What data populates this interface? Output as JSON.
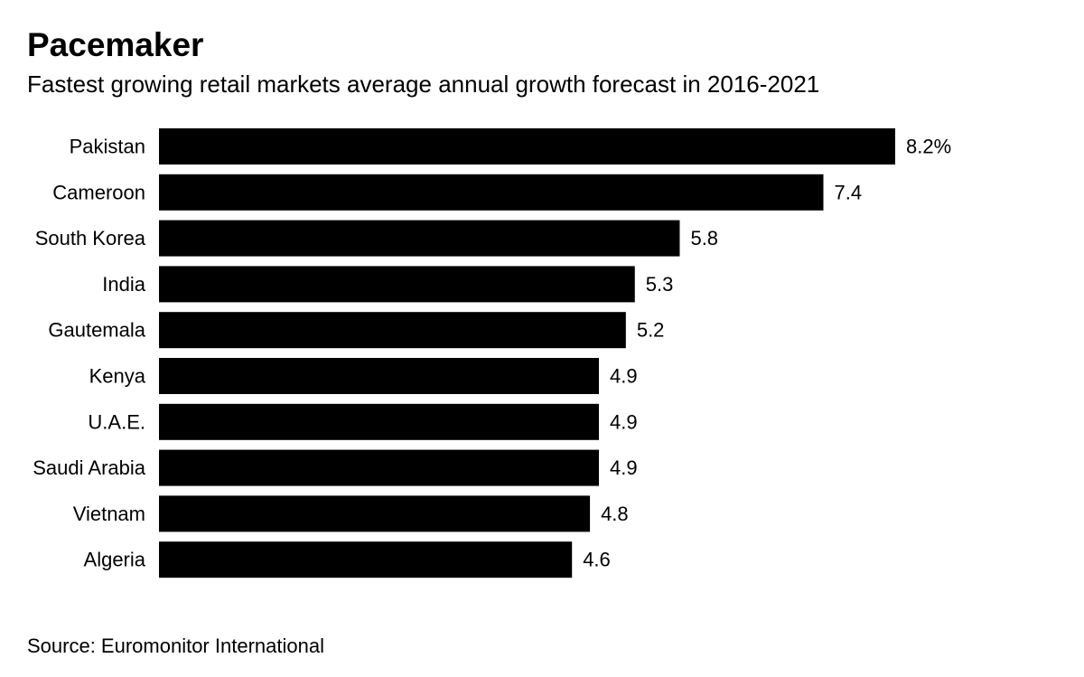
{
  "chart_data": {
    "type": "bar",
    "orientation": "horizontal",
    "title": "Pacemaker",
    "subtitle": "Fastest growing retail markets average annual growth forecast in 2016-2021",
    "categories": [
      "Pakistan",
      "Cameroon",
      "South Korea",
      "India",
      "Gautemala",
      "Kenya",
      "U.A.E.",
      "Saudi Arabia",
      "Vietnam",
      "Algeria"
    ],
    "values": [
      8.2,
      7.4,
      5.8,
      5.3,
      5.2,
      4.9,
      4.9,
      4.9,
      4.8,
      4.6
    ],
    "value_labels": [
      "8.2%",
      "7.4",
      "5.8",
      "5.3",
      "5.2",
      "4.9",
      "4.9",
      "4.9",
      "4.8",
      "4.6"
    ],
    "xlim": [
      0,
      8.2
    ],
    "grid": false,
    "legend": "none",
    "bar_color": "#000000",
    "source": "Source: Euromonitor International"
  }
}
